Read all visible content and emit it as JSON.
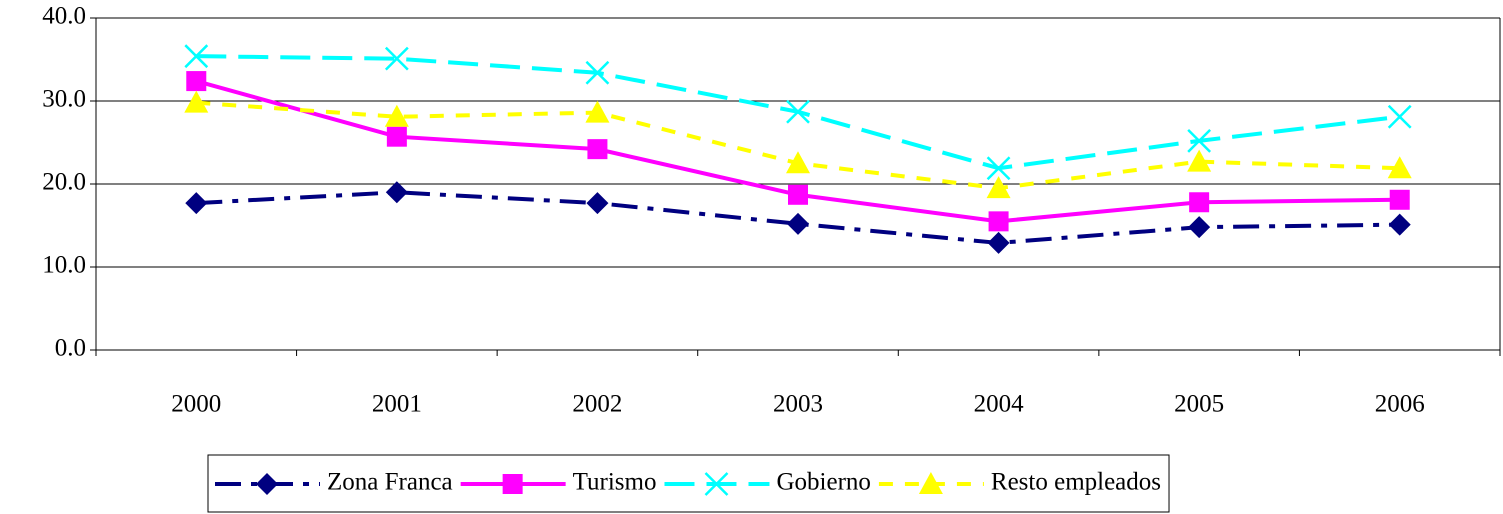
{
  "chart_data": {
    "type": "line",
    "categories": [
      "2000",
      "2001",
      "2002",
      "2003",
      "2004",
      "2005",
      "2006"
    ],
    "series": [
      {
        "name": "Zona Franca",
        "color": "#000080",
        "dash": "dashdot",
        "marker": "diamond",
        "values": [
          17.7,
          19.0,
          17.7,
          15.2,
          12.9,
          14.8,
          15.1
        ]
      },
      {
        "name": "Turismo",
        "color": "#ff00ff",
        "dash": "solid",
        "marker": "square",
        "values": [
          32.4,
          25.7,
          24.2,
          18.7,
          15.5,
          17.8,
          18.1
        ]
      },
      {
        "name": "Gobierno",
        "color": "#00ffff",
        "dash": "longdash",
        "marker": "x",
        "values": [
          35.4,
          35.1,
          33.4,
          28.7,
          21.9,
          25.2,
          28.1
        ]
      },
      {
        "name": "Resto empleados",
        "color": "#ffff00",
        "dash": "dash",
        "marker": "triangle",
        "values": [
          29.8,
          28.1,
          28.6,
          22.5,
          19.5,
          22.7,
          21.9
        ]
      }
    ],
    "ylim": [
      0,
      40
    ],
    "yticks": [
      {
        "value": 0,
        "label": "0.0"
      },
      {
        "value": 10,
        "label": "10.0"
      },
      {
        "value": 20,
        "label": "20.0"
      },
      {
        "value": 30,
        "label": "30.0"
      },
      {
        "value": 40,
        "label": "40.0"
      }
    ],
    "grid": true,
    "legend": "bottom"
  }
}
